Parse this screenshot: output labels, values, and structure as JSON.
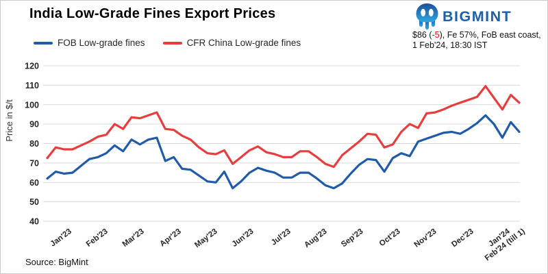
{
  "header": {
    "title": "India Low-Grade Fines Export Prices",
    "logo": {
      "text": "BIGMINT",
      "color": "#1E5FA8",
      "icon": "bigmint-octopus-icon",
      "icon_color_top": "#1C4E9B",
      "icon_color_bottom": "#2FA8DF"
    },
    "annotation": {
      "line1_prefix": "$86 (",
      "line1_delta": "-5",
      "line1_suffix": "), Fe 57%, FoB east coast,",
      "line2": "1 Feb'24, 18:30 IST",
      "delta_color": "#FF0000"
    }
  },
  "footer": {
    "source_text": "Source: BigMint"
  },
  "chart_data": {
    "type": "line",
    "title": "India Low-Grade Fines Export Prices",
    "xlabel": "",
    "ylabel": "Price in $/t",
    "ylim": [
      40,
      120
    ],
    "ytick_step": 10,
    "grid": true,
    "legend_position": "top-left",
    "x_unit": "weekly prices, Jan 2023 - 1 Feb 2024",
    "xtick_labels": [
      "Jan'23",
      "Feb'23",
      "Mar'23",
      "Apr'23",
      "May'23",
      "Jun'23",
      "Jul'23",
      "Aug'23",
      "Sep'23",
      "Oct'23",
      "Nov'23",
      "Dec'23",
      "Jan'24",
      "Feb'24 (till 1)"
    ],
    "xtick_positions": [
      2.2,
      6.5,
      10.8,
      15.2,
      19.5,
      23.8,
      28.2,
      32.5,
      36.8,
      41.2,
      45.5,
      49.9,
      54.2,
      56
    ],
    "series": [
      {
        "name": "FOB Low-grade fines",
        "color": "#1F5BA8",
        "values": [
          62,
          65.5,
          64.5,
          65,
          68.5,
          72,
          73,
          75,
          79,
          76,
          82,
          79.5,
          82,
          83,
          71,
          73,
          67,
          66.5,
          63.5,
          60.5,
          60,
          65.5,
          57,
          60.5,
          65,
          67.5,
          66,
          65,
          62.5,
          62.5,
          65,
          65,
          62,
          58.5,
          57,
          59.5,
          64.5,
          69,
          72,
          71.5,
          65.5,
          72.5,
          75,
          73.5,
          81,
          82.5,
          84,
          85.5,
          86,
          85,
          87.5,
          90.5,
          94.5,
          90,
          83,
          91,
          86
        ]
      },
      {
        "name": "CFR China Low-grade fines",
        "color": "#E83C3D",
        "values": [
          72.5,
          78,
          77,
          77,
          79,
          81,
          83.5,
          84.5,
          90,
          87.5,
          93.5,
          93,
          94.5,
          96,
          87.5,
          87,
          84,
          82,
          78,
          75,
          74.5,
          76.5,
          69.5,
          73,
          76.5,
          78.5,
          75.5,
          74.5,
          73,
          73,
          76,
          76,
          73,
          69.5,
          68,
          74,
          77.5,
          81,
          85,
          84.5,
          78,
          79.5,
          86,
          90,
          88,
          95.5,
          96,
          97.5,
          99.5,
          101,
          102.5,
          104,
          109.5,
          103.5,
          97.5,
          105,
          101
        ]
      }
    ]
  }
}
